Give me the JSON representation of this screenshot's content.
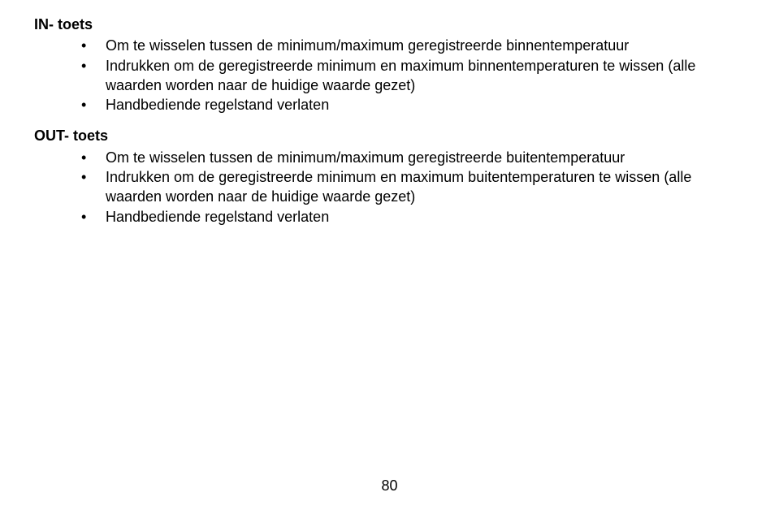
{
  "sections": [
    {
      "heading": "IN- toets",
      "items": [
        "Om te wisselen tussen de minimum/maximum geregistreerde binnentemperatuur",
        "Indrukken om de geregistreerde minimum en maximum binnentemperaturen te wissen (alle waarden worden naar de huidige waarde gezet)",
        "Handbediende regelstand verlaten"
      ]
    },
    {
      "heading": "OUT-  toets",
      "items": [
        "Om te wisselen tussen de minimum/maximum geregistreerde buitentemperatuur",
        "Indrukken om de geregistreerde minimum en maximum buitentemperaturen te wissen (alle waarden worden naar de huidige waarde gezet)",
        "Handbediende regelstand verlaten"
      ]
    }
  ],
  "page_number": "80"
}
